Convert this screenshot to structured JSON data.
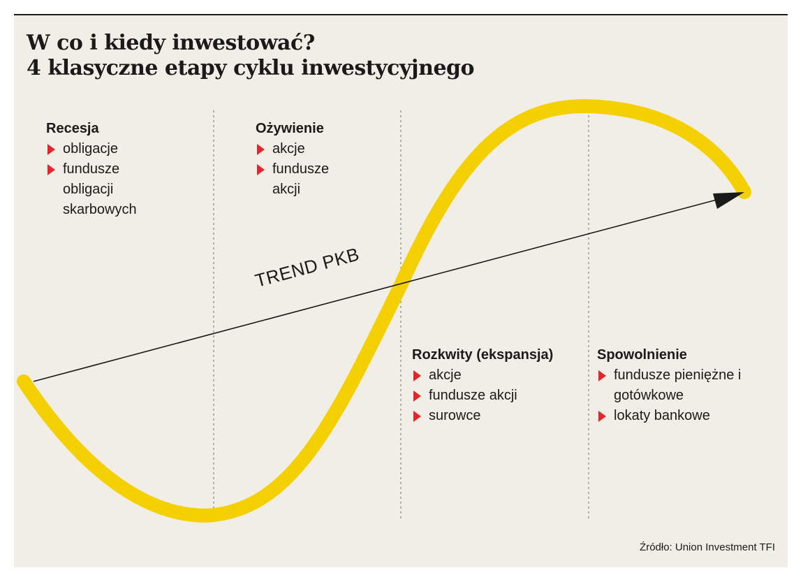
{
  "title": {
    "line1": "W co i kiedy inwestować?",
    "line2": "4 klasyczne etapy cyklu inwestycyjnego"
  },
  "trend_label": "TREND PKB",
  "stages": [
    {
      "heading": "Recesja",
      "items": [
        "obligacje",
        "fundusze obligacji skarbowych"
      ]
    },
    {
      "heading": "Ożywienie",
      "items": [
        "akcje",
        "fundusze akcji"
      ]
    },
    {
      "heading": "Rozkwity (ekspansja)",
      "items": [
        "akcje",
        "fundusze akcji",
        "surowce"
      ]
    },
    {
      "heading": "Spowolnienie",
      "items": [
        "fundusze pieniężne i gotówkowe",
        "lokaty bankowe"
      ]
    }
  ],
  "source": "Źródło: Union Investment TFI",
  "colors": {
    "background": "#f1eee7",
    "curve": "#f5d000",
    "bullet": "#e3262b",
    "text": "#1a1a1a"
  },
  "icons": {
    "bullet": "red-triangle-bullet-icon",
    "arrow": "arrow-head-icon"
  }
}
